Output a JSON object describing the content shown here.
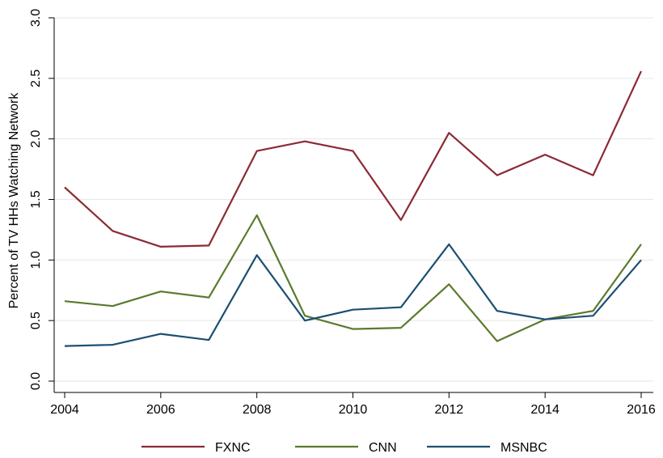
{
  "chart_data": {
    "type": "line",
    "title": "",
    "xlabel": "",
    "ylabel": "Percent of TV HHs Watching Network",
    "x": [
      2004,
      2005,
      2006,
      2007,
      2008,
      2009,
      2010,
      2011,
      2012,
      2013,
      2014,
      2015,
      2016
    ],
    "xticks": [
      2004,
      2006,
      2008,
      2010,
      2012,
      2014,
      2016
    ],
    "xtick_labels": [
      "2004",
      "2006",
      "2008",
      "2010",
      "2012",
      "2014",
      "2016"
    ],
    "yticks": [
      0,
      0.5,
      1,
      1.5,
      2,
      2.5,
      3
    ],
    "ytick_labels": [
      "0.0",
      "0.5",
      "1.0",
      "1.5",
      "2.0",
      "2.5",
      "3.0"
    ],
    "xlim": [
      2004,
      2016
    ],
    "ylim": [
      0,
      3
    ],
    "grid": true,
    "legend_position": "bottom",
    "series": [
      {
        "name": "FXNC",
        "color": "#8b2a35",
        "values": [
          1.6,
          1.24,
          1.11,
          1.12,
          1.9,
          1.98,
          1.9,
          1.33,
          2.05,
          1.7,
          1.87,
          1.7,
          2.56
        ]
      },
      {
        "name": "CNN",
        "color": "#5a7a2e",
        "values": [
          0.66,
          0.62,
          0.74,
          0.69,
          1.37,
          0.54,
          0.43,
          0.44,
          0.8,
          0.33,
          0.51,
          0.58,
          1.13
        ]
      },
      {
        "name": "MSNBC",
        "color": "#1c4f72",
        "values": [
          0.29,
          0.3,
          0.39,
          0.34,
          1.04,
          0.5,
          0.59,
          0.61,
          1.13,
          0.58,
          0.51,
          0.54,
          1.0
        ]
      }
    ]
  }
}
